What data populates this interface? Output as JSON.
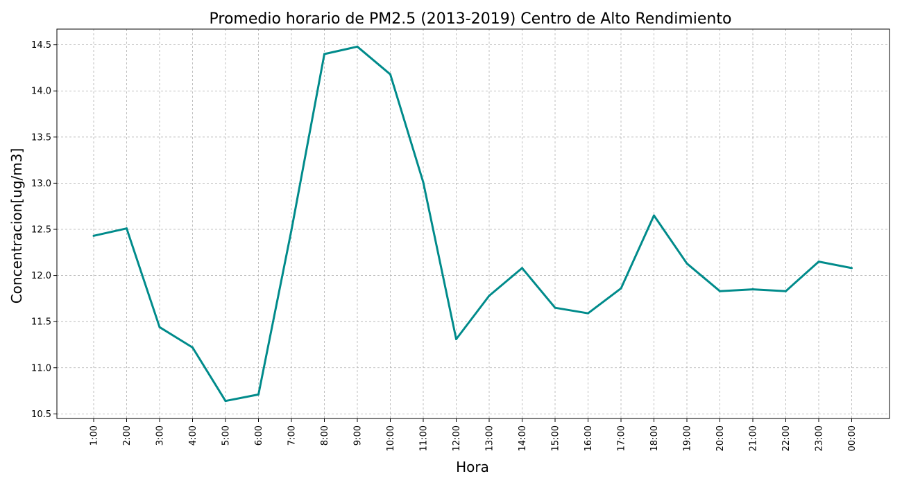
{
  "chart_data": {
    "type": "line",
    "title": "Promedio horario de PM2.5 (2013-2019) Centro de Alto Rendimiento",
    "xlabel": "Hora",
    "ylabel": "Concentracion[ug/m3]",
    "categories": [
      "1:00",
      "2:00",
      "3:00",
      "4:00",
      "5:00",
      "6:00",
      "7:00",
      "8:00",
      "9:00",
      "10:00",
      "11:00",
      "12:00",
      "13:00",
      "14:00",
      "15:00",
      "16:00",
      "17:00",
      "18:00",
      "19:00",
      "20:00",
      "21:00",
      "22:00",
      "23:00",
      "00:00"
    ],
    "series": [
      {
        "values": [
          12.43,
          12.51,
          11.44,
          11.22,
          10.64,
          10.71,
          12.49,
          14.4,
          14.48,
          14.18,
          13.01,
          11.31,
          11.78,
          12.08,
          11.65,
          11.59,
          11.86,
          12.65,
          12.13,
          11.83,
          11.85,
          11.83,
          12.15,
          12.08
        ],
        "color": "#008b8b"
      }
    ],
    "yticks": [
      "10.5",
      "11.0",
      "11.5",
      "12.0",
      "12.5",
      "13.0",
      "13.5",
      "14.0",
      "14.5"
    ],
    "ylim": [
      10.45,
      14.67
    ],
    "grid": true
  }
}
